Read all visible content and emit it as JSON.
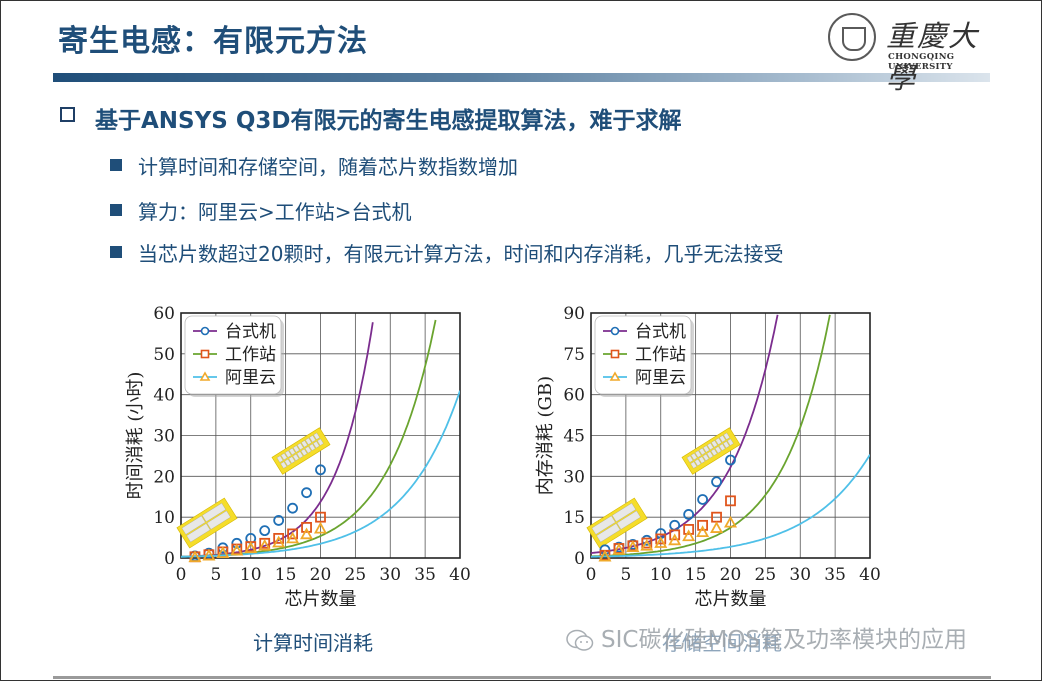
{
  "slide": {
    "title": "寄生电感：有限元方法",
    "logo": {
      "name_cn": "重慶大學",
      "name_en": "CHONGQING UNIVERSITY"
    },
    "heading": "基于ANSYS Q3D有限元的寄生电感提取算法，难于求解",
    "bullets": [
      "计算时间和存储空间，随着芯片数指数增加",
      "算力：阿里云>工作站>台式机",
      "当芯片数超过20颗时，有限元计算方法，时间和内存消耗，几乎无法接受"
    ],
    "captions": [
      "计算时间消耗",
      "存储空间消耗"
    ],
    "watermark": "SIC碳化硅MOS管及功率模块的应用"
  },
  "colors": {
    "title": "#1f4e79",
    "desktop_line": "#7b2d8e",
    "workstation_line": "#6aa42f",
    "aliyun_line": "#4fc0e8",
    "desktop_marker": "#1f6fb5",
    "workstation_marker": "#e0551c",
    "aliyun_marker": "#f0a92a"
  },
  "chart_data": [
    {
      "type": "line",
      "title": "计算时间消耗",
      "xlabel": "芯片数量",
      "ylabel": "时间消耗 (小时)",
      "xlim": [
        0,
        40
      ],
      "ylim": [
        0,
        60
      ],
      "xticks": [
        0,
        5,
        10,
        15,
        20,
        25,
        30,
        35,
        40
      ],
      "yticks": [
        0,
        10,
        20,
        30,
        40,
        50,
        60
      ],
      "grid": true,
      "legend_position": "upper left",
      "x": [
        2,
        4,
        6,
        8,
        10,
        12,
        14,
        16,
        18,
        20
      ],
      "series": [
        {
          "name": "台式机",
          "marker": "circle",
          "values": [
            0.5,
            1.2,
            2.5,
            3.6,
            4.8,
            6.7,
            9.2,
            12.2,
            16.0,
            21.6
          ],
          "fit_curve_end": [
            27.7,
            60
          ]
        },
        {
          "name": "工作站",
          "marker": "square",
          "values": [
            0.3,
            0.8,
            1.5,
            2.2,
            2.8,
            3.6,
            4.8,
            5.9,
            7.5,
            10.0
          ],
          "fit_curve_end": [
            36.7,
            60
          ]
        },
        {
          "name": "阿里云",
          "marker": "triangle",
          "values": [
            0.2,
            0.6,
            1.2,
            1.8,
            2.4,
            3.0,
            3.8,
            4.8,
            5.8,
            7.2
          ],
          "fit_curve_end": [
            40,
            41
          ]
        }
      ]
    },
    {
      "type": "line",
      "title": "存储空间消耗",
      "xlabel": "芯片数量",
      "ylabel": "内存消耗 (GB)",
      "xlim": [
        0,
        40
      ],
      "ylim": [
        0,
        90
      ],
      "xticks": [
        0,
        5,
        10,
        15,
        20,
        25,
        30,
        35,
        40
      ],
      "yticks": [
        0,
        15,
        30,
        45,
        60,
        75,
        90
      ],
      "grid": true,
      "legend_position": "upper left",
      "x": [
        2,
        4,
        6,
        8,
        10,
        12,
        14,
        16,
        18,
        20
      ],
      "series": [
        {
          "name": "台式机",
          "marker": "circle",
          "values": [
            3.0,
            4.0,
            5.0,
            6.5,
            9.0,
            12.0,
            16.0,
            21.5,
            28.0,
            36.0
          ],
          "fit_curve_end": [
            26.8,
            90
          ]
        },
        {
          "name": "工作站",
          "marker": "square",
          "values": [
            1.0,
            3.5,
            4.5,
            5.5,
            7.0,
            8.5,
            10.5,
            12.0,
            15.0,
            21.0
          ],
          "fit_curve_end": [
            34.3,
            90
          ]
        },
        {
          "name": "阿里云",
          "marker": "triangle",
          "values": [
            0.5,
            3.0,
            4.0,
            4.5,
            5.5,
            6.5,
            8.0,
            9.5,
            11.0,
            13.0
          ],
          "fit_curve_end": [
            40,
            38
          ]
        }
      ]
    }
  ]
}
